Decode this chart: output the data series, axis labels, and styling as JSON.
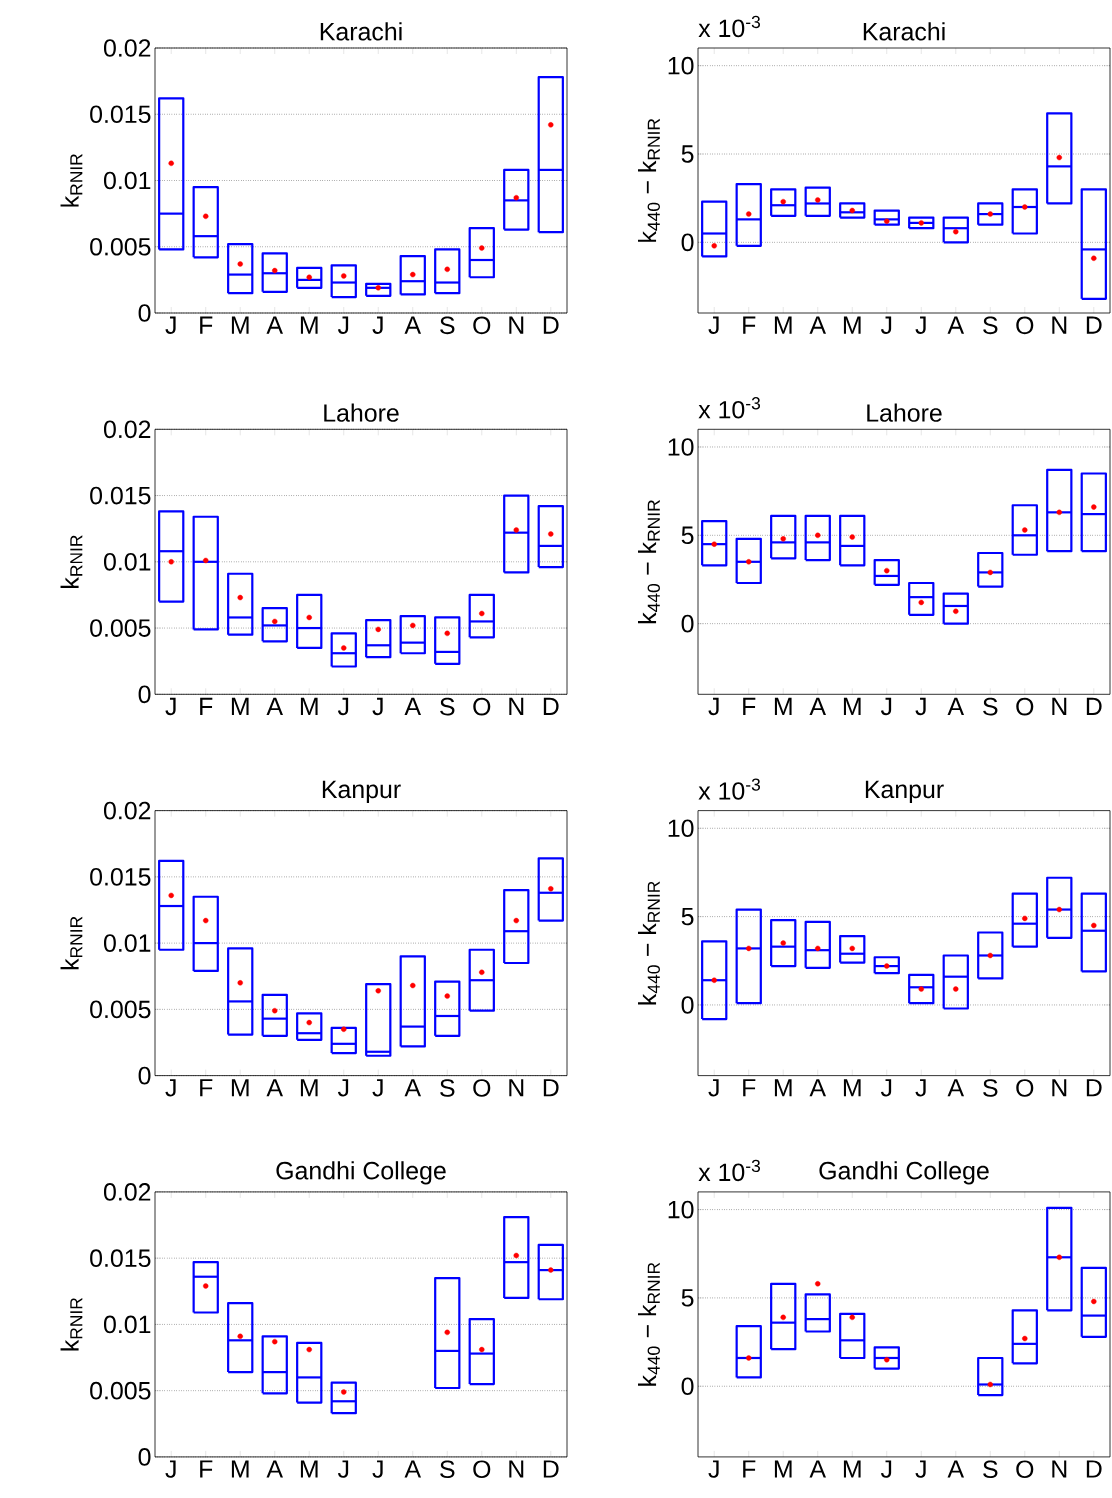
{
  "chart_data": [
    {
      "type": "box",
      "title": "Karachi",
      "ylabel": "k$_{RNIR}$",
      "categories": [
        "J",
        "F",
        "M",
        "A",
        "M",
        "J",
        "J",
        "A",
        "S",
        "O",
        "N",
        "D"
      ],
      "ylim": [
        0,
        0.02
      ],
      "yticks": [
        0,
        0.005,
        0.01,
        0.015,
        0.02
      ],
      "grid": "y",
      "series": [
        {
          "color": "#0000ff",
          "boxes": [
            {
              "low": 0.0048,
              "q1": 0.0048,
              "median": 0.0075,
              "q3": 0.0162,
              "high": 0.0162,
              "mean": 0.0113
            },
            {
              "low": 0.0042,
              "q1": 0.0042,
              "median": 0.0058,
              "q3": 0.0095,
              "high": 0.0095,
              "mean": 0.0073
            },
            {
              "low": 0.0015,
              "q1": 0.0015,
              "median": 0.0029,
              "q3": 0.0052,
              "high": 0.0052,
              "mean": 0.0037
            },
            {
              "low": 0.0016,
              "q1": 0.0016,
              "median": 0.003,
              "q3": 0.0045,
              "high": 0.0045,
              "mean": 0.0032
            },
            {
              "low": 0.0019,
              "q1": 0.0019,
              "median": 0.0025,
              "q3": 0.0034,
              "high": 0.0034,
              "mean": 0.0027
            },
            {
              "low": 0.0012,
              "q1": 0.0012,
              "median": 0.0023,
              "q3": 0.0036,
              "high": 0.0036,
              "mean": 0.0028
            },
            {
              "low": 0.0013,
              "q1": 0.0013,
              "median": 0.0019,
              "q3": 0.0022,
              "high": 0.0022,
              "mean": 0.0019
            },
            {
              "low": 0.0014,
              "q1": 0.0014,
              "median": 0.0024,
              "q3": 0.0043,
              "high": 0.0043,
              "mean": 0.0029
            },
            {
              "low": 0.0015,
              "q1": 0.0015,
              "median": 0.0023,
              "q3": 0.0048,
              "high": 0.0048,
              "mean": 0.0033
            },
            {
              "low": 0.0027,
              "q1": 0.0027,
              "median": 0.004,
              "q3": 0.0064,
              "high": 0.0064,
              "mean": 0.0049
            },
            {
              "low": 0.0063,
              "q1": 0.0063,
              "median": 0.0085,
              "q3": 0.0108,
              "high": 0.0108,
              "mean": 0.0087
            },
            {
              "low": 0.0061,
              "q1": 0.0061,
              "median": 0.0108,
              "q3": 0.0178,
              "high": 0.0178,
              "mean": 0.0142
            }
          ]
        }
      ]
    },
    {
      "type": "box",
      "title": "Karachi",
      "ylabel": "k$_{440}$ − k$_{RNIR}$",
      "annotations": [
        "x 10$^{-3}$"
      ],
      "categories": [
        "J",
        "F",
        "M",
        "A",
        "M",
        "J",
        "J",
        "A",
        "S",
        "O",
        "N",
        "D"
      ],
      "ylim": [
        -4,
        11
      ],
      "yticks": [
        0,
        5,
        10
      ],
      "grid": "y",
      "series": [
        {
          "color": "#0000ff",
          "boxes": [
            {
              "low": -0.8,
              "q1": -0.8,
              "median": 0.5,
              "q3": 2.3,
              "high": 2.3,
              "mean": -0.2
            },
            {
              "low": -0.2,
              "q1": -0.2,
              "median": 1.3,
              "q3": 3.3,
              "high": 3.3,
              "mean": 1.6
            },
            {
              "low": 1.5,
              "q1": 1.5,
              "median": 2.1,
              "q3": 3.0,
              "high": 3.0,
              "mean": 2.3
            },
            {
              "low": 1.5,
              "q1": 1.5,
              "median": 2.2,
              "q3": 3.1,
              "high": 3.1,
              "mean": 2.4
            },
            {
              "low": 1.4,
              "q1": 1.4,
              "median": 1.7,
              "q3": 2.2,
              "high": 2.2,
              "mean": 1.8
            },
            {
              "low": 1.0,
              "q1": 1.0,
              "median": 1.3,
              "q3": 1.8,
              "high": 1.8,
              "mean": 1.2
            },
            {
              "low": 0.8,
              "q1": 0.8,
              "median": 1.1,
              "q3": 1.4,
              "high": 1.4,
              "mean": 1.1
            },
            {
              "low": 0.0,
              "q1": 0.0,
              "median": 0.8,
              "q3": 1.4,
              "high": 1.4,
              "mean": 0.6
            },
            {
              "low": 1.0,
              "q1": 1.0,
              "median": 1.6,
              "q3": 2.2,
              "high": 2.2,
              "mean": 1.6
            },
            {
              "low": 0.5,
              "q1": 0.5,
              "median": 2.0,
              "q3": 3.0,
              "high": 3.0,
              "mean": 2.0
            },
            {
              "low": 2.2,
              "q1": 2.2,
              "median": 4.3,
              "q3": 7.3,
              "high": 7.3,
              "mean": 4.8
            },
            {
              "low": -3.2,
              "q1": -3.2,
              "median": -0.4,
              "q3": 3.0,
              "high": 3.0,
              "mean": -0.9
            }
          ]
        }
      ]
    },
    {
      "type": "box",
      "title": "Lahore",
      "ylabel": "k$_{RNIR}$",
      "categories": [
        "J",
        "F",
        "M",
        "A",
        "M",
        "J",
        "J",
        "A",
        "S",
        "O",
        "N",
        "D"
      ],
      "ylim": [
        0,
        0.02
      ],
      "yticks": [
        0,
        0.005,
        0.01,
        0.015,
        0.02
      ],
      "grid": "y",
      "series": [
        {
          "color": "#0000ff",
          "boxes": [
            {
              "low": 0.007,
              "q1": 0.007,
              "median": 0.0108,
              "q3": 0.0138,
              "high": 0.0138,
              "mean": 0.01
            },
            {
              "low": 0.0049,
              "q1": 0.0049,
              "median": 0.01,
              "q3": 0.0134,
              "high": 0.0134,
              "mean": 0.0101
            },
            {
              "low": 0.0045,
              "q1": 0.0045,
              "median": 0.0058,
              "q3": 0.0091,
              "high": 0.0091,
              "mean": 0.0073
            },
            {
              "low": 0.004,
              "q1": 0.004,
              "median": 0.0052,
              "q3": 0.0065,
              "high": 0.0065,
              "mean": 0.0055
            },
            {
              "low": 0.0035,
              "q1": 0.0035,
              "median": 0.005,
              "q3": 0.0075,
              "high": 0.0075,
              "mean": 0.0058
            },
            {
              "low": 0.0021,
              "q1": 0.0021,
              "median": 0.0031,
              "q3": 0.0046,
              "high": 0.0046,
              "mean": 0.0035
            },
            {
              "low": 0.0028,
              "q1": 0.0028,
              "median": 0.0037,
              "q3": 0.0056,
              "high": 0.0056,
              "mean": 0.0049
            },
            {
              "low": 0.0031,
              "q1": 0.0031,
              "median": 0.0039,
              "q3": 0.0059,
              "high": 0.0059,
              "mean": 0.0052
            },
            {
              "low": 0.0023,
              "q1": 0.0023,
              "median": 0.0032,
              "q3": 0.0058,
              "high": 0.0058,
              "mean": 0.0046
            },
            {
              "low": 0.0043,
              "q1": 0.0043,
              "median": 0.0055,
              "q3": 0.0075,
              "high": 0.0075,
              "mean": 0.0061
            },
            {
              "low": 0.0092,
              "q1": 0.0092,
              "median": 0.0122,
              "q3": 0.015,
              "high": 0.015,
              "mean": 0.0124
            },
            {
              "low": 0.0096,
              "q1": 0.0096,
              "median": 0.0112,
              "q3": 0.0142,
              "high": 0.0142,
              "mean": 0.0121
            }
          ]
        }
      ]
    },
    {
      "type": "box",
      "title": "Lahore",
      "ylabel": "k$_{440}$ − k$_{RNIR}$",
      "annotations": [
        "x 10$^{-3}$"
      ],
      "categories": [
        "J",
        "F",
        "M",
        "A",
        "M",
        "J",
        "J",
        "A",
        "S",
        "O",
        "N",
        "D"
      ],
      "ylim": [
        -4,
        11
      ],
      "yticks": [
        0,
        5,
        10
      ],
      "grid": "y",
      "series": [
        {
          "color": "#0000ff",
          "boxes": [
            {
              "low": 3.3,
              "q1": 3.3,
              "median": 4.5,
              "q3": 5.8,
              "high": 5.8,
              "mean": 4.5
            },
            {
              "low": 2.3,
              "q1": 2.3,
              "median": 3.5,
              "q3": 4.8,
              "high": 4.8,
              "mean": 3.5
            },
            {
              "low": 3.7,
              "q1": 3.7,
              "median": 4.6,
              "q3": 6.1,
              "high": 6.1,
              "mean": 4.8
            },
            {
              "low": 3.6,
              "q1": 3.6,
              "median": 4.6,
              "q3": 6.1,
              "high": 6.1,
              "mean": 5.0
            },
            {
              "low": 3.3,
              "q1": 3.3,
              "median": 4.4,
              "q3": 6.1,
              "high": 6.1,
              "mean": 4.9
            },
            {
              "low": 2.2,
              "q1": 2.2,
              "median": 2.7,
              "q3": 3.6,
              "high": 3.6,
              "mean": 3.0
            },
            {
              "low": 0.5,
              "q1": 0.5,
              "median": 1.5,
              "q3": 2.3,
              "high": 2.3,
              "mean": 1.2
            },
            {
              "low": 0.0,
              "q1": 0.0,
              "median": 1.0,
              "q3": 1.7,
              "high": 1.7,
              "mean": 0.7
            },
            {
              "low": 2.1,
              "q1": 2.1,
              "median": 2.9,
              "q3": 4.0,
              "high": 4.0,
              "mean": 2.9
            },
            {
              "low": 3.9,
              "q1": 3.9,
              "median": 5.0,
              "q3": 6.7,
              "high": 6.7,
              "mean": 5.3
            },
            {
              "low": 4.1,
              "q1": 4.1,
              "median": 6.3,
              "q3": 8.7,
              "high": 8.7,
              "mean": 6.3
            },
            {
              "low": 4.1,
              "q1": 4.1,
              "median": 6.2,
              "q3": 8.5,
              "high": 8.5,
              "mean": 6.6
            }
          ]
        }
      ]
    },
    {
      "type": "box",
      "title": "Kanpur",
      "ylabel": "k$_{RNIR}$",
      "categories": [
        "J",
        "F",
        "M",
        "A",
        "M",
        "J",
        "J",
        "A",
        "S",
        "O",
        "N",
        "D"
      ],
      "ylim": [
        0,
        0.02
      ],
      "yticks": [
        0,
        0.005,
        0.01,
        0.015,
        0.02
      ],
      "grid": "y",
      "series": [
        {
          "color": "#0000ff",
          "boxes": [
            {
              "low": 0.0095,
              "q1": 0.0095,
              "median": 0.0128,
              "q3": 0.0162,
              "high": 0.0162,
              "mean": 0.0136
            },
            {
              "low": 0.0079,
              "q1": 0.0079,
              "median": 0.01,
              "q3": 0.0135,
              "high": 0.0135,
              "mean": 0.0117
            },
            {
              "low": 0.0031,
              "q1": 0.0031,
              "median": 0.0056,
              "q3": 0.0096,
              "high": 0.0096,
              "mean": 0.007
            },
            {
              "low": 0.003,
              "q1": 0.003,
              "median": 0.0043,
              "q3": 0.0061,
              "high": 0.0061,
              "mean": 0.0049
            },
            {
              "low": 0.0027,
              "q1": 0.0027,
              "median": 0.0032,
              "q3": 0.0047,
              "high": 0.0047,
              "mean": 0.004
            },
            {
              "low": 0.0017,
              "q1": 0.0017,
              "median": 0.0024,
              "q3": 0.0036,
              "high": 0.0036,
              "mean": 0.0035
            },
            {
              "low": 0.0015,
              "q1": 0.0015,
              "median": 0.0018,
              "q3": 0.0069,
              "high": 0.0069,
              "mean": 0.0064
            },
            {
              "low": 0.0022,
              "q1": 0.0022,
              "median": 0.0037,
              "q3": 0.009,
              "high": 0.009,
              "mean": 0.0068
            },
            {
              "low": 0.003,
              "q1": 0.003,
              "median": 0.0045,
              "q3": 0.0071,
              "high": 0.0071,
              "mean": 0.006
            },
            {
              "low": 0.0049,
              "q1": 0.0049,
              "median": 0.0072,
              "q3": 0.0095,
              "high": 0.0095,
              "mean": 0.0078
            },
            {
              "low": 0.0085,
              "q1": 0.0085,
              "median": 0.0109,
              "q3": 0.014,
              "high": 0.014,
              "mean": 0.0117
            },
            {
              "low": 0.0117,
              "q1": 0.0117,
              "median": 0.0138,
              "q3": 0.0164,
              "high": 0.0164,
              "mean": 0.0141
            }
          ]
        }
      ]
    },
    {
      "type": "box",
      "title": "Kanpur",
      "ylabel": "k$_{440}$ − k$_{RNIR}$",
      "annotations": [
        "x 10$^{-3}$"
      ],
      "categories": [
        "J",
        "F",
        "M",
        "A",
        "M",
        "J",
        "J",
        "A",
        "S",
        "O",
        "N",
        "D"
      ],
      "ylim": [
        -4,
        11
      ],
      "yticks": [
        0,
        5,
        10
      ],
      "grid": "y",
      "series": [
        {
          "color": "#0000ff",
          "boxes": [
            {
              "low": -0.8,
              "q1": -0.8,
              "median": 1.4,
              "q3": 3.6,
              "high": 3.6,
              "mean": 1.4
            },
            {
              "low": 0.1,
              "q1": 0.1,
              "median": 3.2,
              "q3": 5.4,
              "high": 5.4,
              "mean": 3.2
            },
            {
              "low": 2.2,
              "q1": 2.2,
              "median": 3.3,
              "q3": 4.8,
              "high": 4.8,
              "mean": 3.5
            },
            {
              "low": 2.1,
              "q1": 2.1,
              "median": 3.1,
              "q3": 4.7,
              "high": 4.7,
              "mean": 3.2
            },
            {
              "low": 2.4,
              "q1": 2.4,
              "median": 2.9,
              "q3": 3.9,
              "high": 3.9,
              "mean": 3.2
            },
            {
              "low": 1.8,
              "q1": 1.8,
              "median": 2.2,
              "q3": 2.7,
              "high": 2.7,
              "mean": 2.2
            },
            {
              "low": 0.1,
              "q1": 0.1,
              "median": 1.0,
              "q3": 1.7,
              "high": 1.7,
              "mean": 0.9
            },
            {
              "low": -0.2,
              "q1": -0.2,
              "median": 1.6,
              "q3": 2.8,
              "high": 2.8,
              "mean": 0.9
            },
            {
              "low": 1.5,
              "q1": 1.5,
              "median": 2.8,
              "q3": 4.1,
              "high": 4.1,
              "mean": 2.8
            },
            {
              "low": 3.3,
              "q1": 3.3,
              "median": 4.6,
              "q3": 6.3,
              "high": 6.3,
              "mean": 4.9
            },
            {
              "low": 3.8,
              "q1": 3.8,
              "median": 5.4,
              "q3": 7.2,
              "high": 7.2,
              "mean": 5.4
            },
            {
              "low": 1.9,
              "q1": 1.9,
              "median": 4.2,
              "q3": 6.3,
              "high": 6.3,
              "mean": 4.5
            }
          ]
        }
      ]
    },
    {
      "type": "box",
      "title": "Gandhi College",
      "ylabel": "k$_{RNIR}$",
      "categories": [
        "J",
        "F",
        "M",
        "A",
        "M",
        "J",
        "J",
        "A",
        "S",
        "O",
        "N",
        "D"
      ],
      "ylim": [
        0,
        0.02
      ],
      "yticks": [
        0,
        0.005,
        0.01,
        0.015,
        0.02
      ],
      "grid": "y",
      "series": [
        {
          "color": "#0000ff",
          "boxes": [
            null,
            {
              "low": 0.0109,
              "q1": 0.0109,
              "median": 0.0136,
              "q3": 0.0147,
              "high": 0.0147,
              "mean": 0.0129
            },
            {
              "low": 0.0064,
              "q1": 0.0064,
              "median": 0.0088,
              "q3": 0.0116,
              "high": 0.0116,
              "mean": 0.0091
            },
            {
              "low": 0.0048,
              "q1": 0.0048,
              "median": 0.0064,
              "q3": 0.0091,
              "high": 0.0091,
              "mean": 0.0087
            },
            {
              "low": 0.0041,
              "q1": 0.0041,
              "median": 0.006,
              "q3": 0.0086,
              "high": 0.0086,
              "mean": 0.0081
            },
            {
              "low": 0.0033,
              "q1": 0.0033,
              "median": 0.0042,
              "q3": 0.0056,
              "high": 0.0056,
              "mean": 0.0049
            },
            null,
            null,
            {
              "low": 0.0052,
              "q1": 0.0052,
              "median": 0.008,
              "q3": 0.0135,
              "high": 0.0135,
              "mean": 0.0094
            },
            {
              "low": 0.0055,
              "q1": 0.0055,
              "median": 0.0078,
              "q3": 0.0104,
              "high": 0.0104,
              "mean": 0.0081
            },
            {
              "low": 0.012,
              "q1": 0.012,
              "median": 0.0147,
              "q3": 0.0181,
              "high": 0.0181,
              "mean": 0.0152
            },
            {
              "low": 0.0119,
              "q1": 0.0119,
              "median": 0.0141,
              "q3": 0.016,
              "high": 0.016,
              "mean": 0.0141
            }
          ]
        }
      ]
    },
    {
      "type": "box",
      "title": "Gandhi College",
      "ylabel": "k$_{440}$ − k$_{RNIR}$",
      "annotations": [
        "x 10$^{-3}$"
      ],
      "categories": [
        "J",
        "F",
        "M",
        "A",
        "M",
        "J",
        "J",
        "A",
        "S",
        "O",
        "N",
        "D"
      ],
      "ylim": [
        -4,
        11
      ],
      "yticks": [
        0,
        5,
        10
      ],
      "grid": "y",
      "series": [
        {
          "color": "#0000ff",
          "boxes": [
            null,
            {
              "low": 0.5,
              "q1": 0.5,
              "median": 1.6,
              "q3": 3.4,
              "high": 3.4,
              "mean": 1.6
            },
            {
              "low": 2.1,
              "q1": 2.1,
              "median": 3.6,
              "q3": 5.8,
              "high": 5.8,
              "mean": 3.9
            },
            {
              "low": 3.1,
              "q1": 3.1,
              "median": 3.8,
              "q3": 5.2,
              "high": 5.2,
              "mean": 5.8
            },
            {
              "low": 1.6,
              "q1": 1.6,
              "median": 2.6,
              "q3": 4.1,
              "high": 4.1,
              "mean": 3.9
            },
            {
              "low": 1.0,
              "q1": 1.0,
              "median": 1.6,
              "q3": 2.2,
              "high": 2.2,
              "mean": 1.5
            },
            null,
            null,
            {
              "low": -0.5,
              "q1": -0.5,
              "median": 0.1,
              "q3": 1.6,
              "high": 1.6,
              "mean": 0.1
            },
            {
              "low": 1.3,
              "q1": 1.3,
              "median": 2.4,
              "q3": 4.3,
              "high": 4.3,
              "mean": 2.7
            },
            {
              "low": 4.3,
              "q1": 4.3,
              "median": 7.3,
              "q3": 10.1,
              "high": 10.1,
              "mean": 7.3
            },
            {
              "low": 2.8,
              "q1": 2.8,
              "median": 4.0,
              "q3": 6.7,
              "high": 6.7,
              "mean": 4.8
            }
          ]
        }
      ]
    }
  ]
}
